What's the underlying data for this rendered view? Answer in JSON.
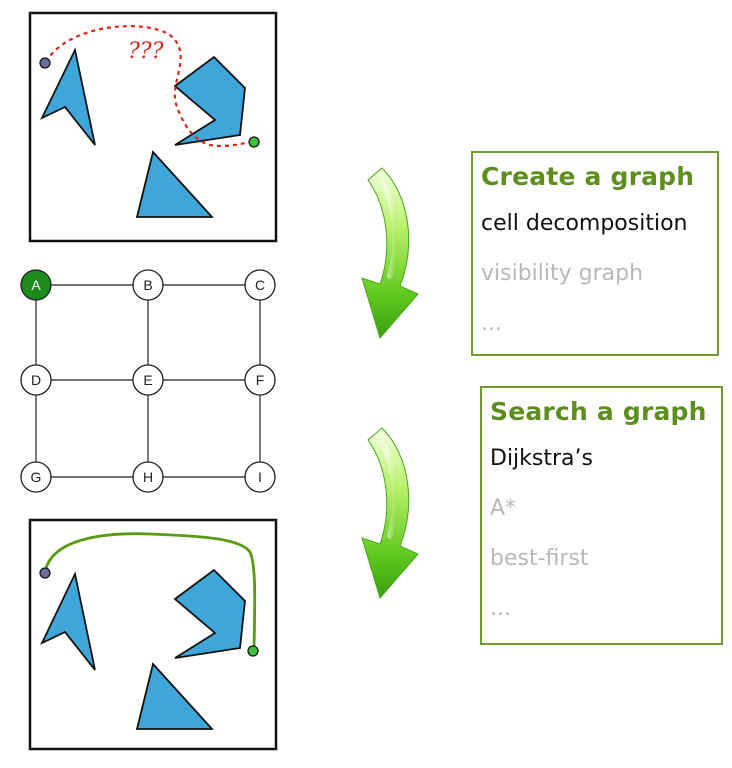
{
  "top_panel": {
    "question_marks": "???"
  },
  "graph": {
    "nodes": [
      {
        "id": "A",
        "label": "A",
        "highlighted": true
      },
      {
        "id": "B",
        "label": "B",
        "highlighted": false
      },
      {
        "id": "C",
        "label": "C",
        "highlighted": false
      },
      {
        "id": "D",
        "label": "D",
        "highlighted": false
      },
      {
        "id": "E",
        "label": "E",
        "highlighted": false
      },
      {
        "id": "F",
        "label": "F",
        "highlighted": false
      },
      {
        "id": "G",
        "label": "G",
        "highlighted": false
      },
      {
        "id": "H",
        "label": "H",
        "highlighted": false
      },
      {
        "id": "I",
        "label": "I",
        "highlighted": false
      }
    ],
    "edges": [
      [
        "A",
        "B"
      ],
      [
        "B",
        "C"
      ],
      [
        "D",
        "E"
      ],
      [
        "E",
        "F"
      ],
      [
        "G",
        "H"
      ],
      [
        "H",
        "I"
      ],
      [
        "A",
        "D"
      ],
      [
        "D",
        "G"
      ],
      [
        "B",
        "E"
      ],
      [
        "E",
        "H"
      ],
      [
        "C",
        "F"
      ],
      [
        "F",
        "I"
      ]
    ]
  },
  "create_panel": {
    "title": "Create a graph",
    "items": [
      {
        "label": "cell decomposition",
        "active": true
      },
      {
        "label": "visibility graph",
        "active": false
      },
      {
        "label": "...",
        "active": false
      }
    ]
  },
  "search_panel": {
    "title": "Search a graph",
    "items": [
      {
        "label": "Dijkstra’s",
        "active": true
      },
      {
        "label": "A*",
        "active": false
      },
      {
        "label": "best-first",
        "active": false
      },
      {
        "label": "...",
        "active": false
      }
    ]
  },
  "colors": {
    "panel_border": "#6f9c2c",
    "panel_title": "#5e8f1e",
    "obstacle_fill": "#3fa6d9",
    "obstacle_stroke": "#111111",
    "dashed_path": "#d8281a",
    "solid_path": "#5a9a14",
    "start_dot": "#6d6d9a",
    "goal_dot": "#3fbf3f",
    "highlight_node": "#1e8a1e",
    "arrow_green": "#5fc81e"
  }
}
